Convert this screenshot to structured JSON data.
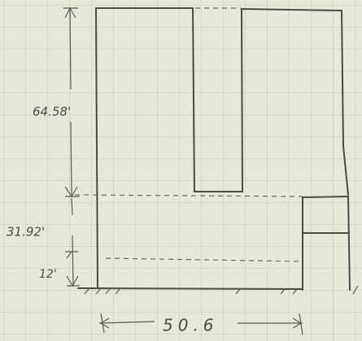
{
  "dimensions": {
    "height_top": "64.58'",
    "height_middle": "31.92'",
    "height_bottom": "12'",
    "width": "50.6"
  }
}
